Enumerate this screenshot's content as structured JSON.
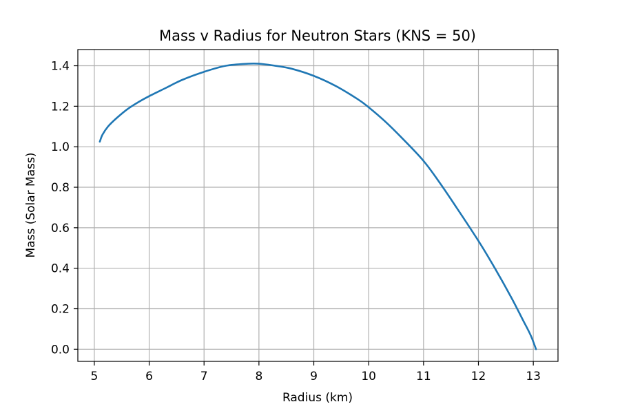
{
  "chart_data": {
    "type": "line",
    "title": "Mass v Radius for Neutron Stars (KNS = 50)",
    "xlabel": "Radius (km)",
    "ylabel": "Mass (Solar Mass)",
    "xlim": [
      4.7,
      13.45
    ],
    "ylim": [
      -0.06,
      1.48
    ],
    "xticks": [
      5,
      6,
      7,
      8,
      9,
      10,
      11,
      12,
      13
    ],
    "yticks": [
      0.0,
      0.2,
      0.4,
      0.6,
      0.8,
      1.0,
      1.2,
      1.4
    ],
    "ytick_labels": [
      "0.0",
      "0.2",
      "0.4",
      "0.6",
      "0.8",
      "1.0",
      "1.2",
      "1.4"
    ],
    "grid": true,
    "series": [
      {
        "color": "#1f77b4",
        "x": [
          5.1,
          5.15,
          5.25,
          5.4,
          5.6,
          5.8,
          6.0,
          6.3,
          6.6,
          7.0,
          7.4,
          7.8,
          8.0,
          8.3,
          8.6,
          9.0,
          9.4,
          9.8,
          10.0,
          10.3,
          10.6,
          11.0,
          11.3,
          11.6,
          12.0,
          12.3,
          12.6,
          12.8,
          12.95,
          13.05
        ],
        "y": [
          1.025,
          1.06,
          1.1,
          1.14,
          1.185,
          1.22,
          1.25,
          1.29,
          1.33,
          1.37,
          1.4,
          1.41,
          1.41,
          1.4,
          1.385,
          1.35,
          1.3,
          1.235,
          1.195,
          1.125,
          1.045,
          0.93,
          0.82,
          0.7,
          0.535,
          0.4,
          0.255,
          0.15,
          0.07,
          0.0
        ]
      }
    ]
  }
}
